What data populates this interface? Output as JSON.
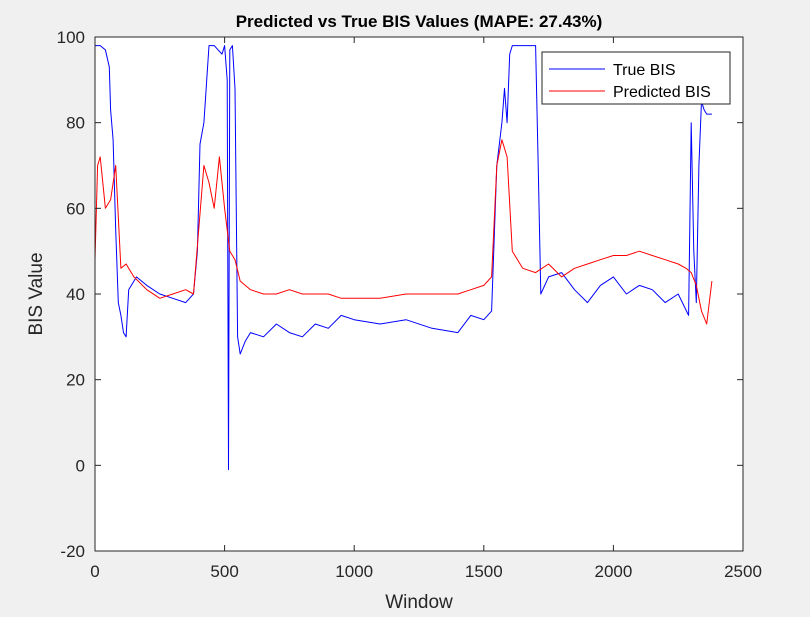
{
  "chart_data": {
    "type": "line",
    "title": "Predicted vs True BIS Values (MAPE: 27.43%)",
    "xlabel": "Window",
    "ylabel": "BIS Value",
    "xlim": [
      0,
      2500
    ],
    "ylim": [
      -20,
      100
    ],
    "x_ticks": [
      0,
      500,
      1000,
      1500,
      2000,
      2500
    ],
    "y_ticks": [
      -20,
      0,
      20,
      40,
      60,
      80,
      100
    ],
    "grid": false,
    "legend": "top-right",
    "series": [
      {
        "name": "True BIS",
        "color": "#0000ff",
        "x": [
          0,
          20,
          40,
          55,
          60,
          70,
          80,
          90,
          100,
          110,
          120,
          130,
          160,
          200,
          250,
          300,
          350,
          380,
          395,
          405,
          420,
          440,
          460,
          475,
          490,
          500,
          510,
          515,
          520,
          530,
          540,
          550,
          560,
          580,
          600,
          650,
          700,
          750,
          800,
          850,
          900,
          950,
          1000,
          1100,
          1200,
          1300,
          1400,
          1450,
          1500,
          1530,
          1550,
          1570,
          1580,
          1590,
          1600,
          1610,
          1620,
          1630,
          1650,
          1680,
          1700,
          1710,
          1720,
          1750,
          1800,
          1850,
          1900,
          1950,
          2000,
          2050,
          2100,
          2150,
          2200,
          2250,
          2290,
          2300,
          2310,
          2320,
          2330,
          2340,
          2350,
          2360,
          2370,
          2380
        ],
        "values": [
          98,
          98,
          97,
          93,
          83,
          76,
          55,
          38,
          35,
          31,
          30,
          41,
          44,
          42,
          40,
          39,
          38,
          40,
          50,
          75,
          80,
          98,
          98,
          97,
          96,
          98,
          90,
          -1,
          97,
          98,
          88,
          30,
          26,
          29,
          31,
          30,
          33,
          31,
          30,
          33,
          32,
          35,
          34,
          33,
          34,
          32,
          31,
          35,
          34,
          36,
          70,
          80,
          88,
          80,
          96,
          98,
          98,
          98,
          98,
          98,
          98,
          70,
          40,
          44,
          45,
          41,
          38,
          42,
          44,
          40,
          42,
          41,
          38,
          40,
          35,
          80,
          50,
          38,
          70,
          85,
          83,
          82,
          82,
          82
        ]
      },
      {
        "name": "Predicted BIS",
        "color": "#ff0000",
        "x": [
          0,
          10,
          20,
          40,
          60,
          80,
          100,
          120,
          150,
          200,
          250,
          300,
          350,
          380,
          400,
          420,
          440,
          460,
          480,
          500,
          520,
          540,
          560,
          600,
          650,
          700,
          750,
          800,
          850,
          900,
          950,
          1000,
          1050,
          1100,
          1200,
          1300,
          1400,
          1450,
          1500,
          1530,
          1550,
          1570,
          1590,
          1610,
          1630,
          1650,
          1700,
          1750,
          1800,
          1850,
          1900,
          1950,
          2000,
          2050,
          2100,
          2150,
          2200,
          2250,
          2280,
          2300,
          2320,
          2340,
          2360,
          2380
        ],
        "values": [
          48,
          70,
          72,
          60,
          62,
          70,
          46,
          47,
          44,
          41,
          39,
          40,
          41,
          40,
          55,
          70,
          66,
          60,
          72,
          60,
          50,
          48,
          43,
          41,
          40,
          40,
          41,
          40,
          40,
          40,
          39,
          39,
          39,
          39,
          40,
          40,
          40,
          41,
          42,
          44,
          70,
          76,
          72,
          50,
          48,
          46,
          45,
          47,
          44,
          46,
          47,
          48,
          49,
          49,
          50,
          49,
          48,
          47,
          46,
          45,
          42,
          36,
          33,
          43
        ]
      }
    ]
  }
}
